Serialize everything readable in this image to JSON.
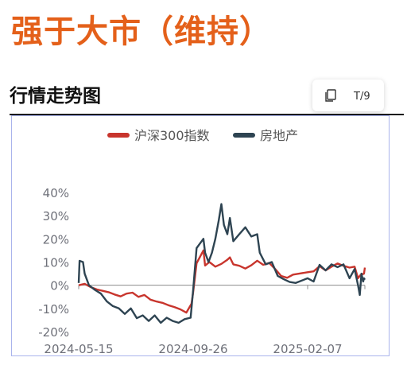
{
  "headline": "强于大市（维持）",
  "section_title": "行情走势图",
  "toolbar": {
    "copy_icon": "copy-icon",
    "text_icon": "font-size-icon",
    "text_glyph": "T/9"
  },
  "colors": {
    "headline": "#e4601a",
    "series_index": "#c8352d",
    "series_realestate": "#2e4452",
    "axis_text": "#6e7079",
    "frame": "#aab4ec"
  },
  "chart_data": {
    "type": "line",
    "title": "",
    "xlabel": "",
    "ylabel": "",
    "ylim": [
      -20,
      40
    ],
    "yticks": [
      -20,
      -10,
      0,
      10,
      20,
      30,
      40
    ],
    "ytick_labels": [
      "-20%",
      "-10%",
      "0%",
      "10%",
      "20%",
      "30%",
      "40%"
    ],
    "xlim": [
      "2024-05-15",
      "2025-04-15"
    ],
    "xticks": [
      "2024-05-15",
      "2024-09-26",
      "2025-02-07"
    ],
    "legend_position": "top-center",
    "grid": false,
    "series": [
      {
        "name": "沪深300指数",
        "color": "#c8352d",
        "points": [
          [
            "2024-05-15",
            0
          ],
          [
            "2024-05-22",
            0.6
          ],
          [
            "2024-05-29",
            -0.8
          ],
          [
            "2024-06-05",
            -1.8
          ],
          [
            "2024-06-12",
            -2.4
          ],
          [
            "2024-06-19",
            -3.0
          ],
          [
            "2024-06-26",
            -4.0
          ],
          [
            "2024-07-03",
            -4.8
          ],
          [
            "2024-07-10",
            -3.6
          ],
          [
            "2024-07-17",
            -3.2
          ],
          [
            "2024-07-24",
            -5.0
          ],
          [
            "2024-07-31",
            -4.2
          ],
          [
            "2024-08-07",
            -6.2
          ],
          [
            "2024-08-14",
            -7.0
          ],
          [
            "2024-08-21",
            -7.6
          ],
          [
            "2024-08-28",
            -8.6
          ],
          [
            "2024-09-04",
            -9.4
          ],
          [
            "2024-09-11",
            -10.4
          ],
          [
            "2024-09-18",
            -11.8
          ],
          [
            "2024-09-24",
            -8.0
          ],
          [
            "2024-09-26",
            -3.0
          ],
          [
            "2024-09-30",
            9.5
          ],
          [
            "2024-10-08",
            15.0
          ],
          [
            "2024-10-10",
            8.5
          ],
          [
            "2024-10-15",
            10.0
          ],
          [
            "2024-10-22",
            8.0
          ],
          [
            "2024-10-29",
            9.2
          ],
          [
            "2024-11-05",
            11.0
          ],
          [
            "2024-11-08",
            12.0
          ],
          [
            "2024-11-12",
            9.0
          ],
          [
            "2024-11-19",
            8.4
          ],
          [
            "2024-11-26",
            7.2
          ],
          [
            "2024-12-03",
            8.6
          ],
          [
            "2024-12-10",
            10.6
          ],
          [
            "2024-12-17",
            8.8
          ],
          [
            "2024-12-24",
            9.6
          ],
          [
            "2024-12-31",
            7.0
          ],
          [
            "2025-01-07",
            4.0
          ],
          [
            "2025-01-14",
            3.2
          ],
          [
            "2025-01-21",
            4.6
          ],
          [
            "2025-01-28",
            5.0
          ],
          [
            "2025-02-07",
            5.6
          ],
          [
            "2025-02-14",
            6.0
          ],
          [
            "2025-02-21",
            8.2
          ],
          [
            "2025-02-28",
            6.4
          ],
          [
            "2025-03-07",
            8.0
          ],
          [
            "2025-03-14",
            9.4
          ],
          [
            "2025-03-21",
            8.4
          ],
          [
            "2025-03-28",
            7.6
          ],
          [
            "2025-04-03",
            8.0
          ],
          [
            "2025-04-07",
            3.0
          ],
          [
            "2025-04-10",
            4.4
          ],
          [
            "2025-04-14",
            5.0
          ],
          [
            "2025-04-15",
            7.6
          ]
        ]
      },
      {
        "name": "房地产",
        "color": "#2e4452",
        "points": [
          [
            "2024-05-15",
            1.0
          ],
          [
            "2024-05-16",
            10.5
          ],
          [
            "2024-05-20",
            10.0
          ],
          [
            "2024-05-22",
            5.0
          ],
          [
            "2024-05-27",
            0.0
          ],
          [
            "2024-06-03",
            -2.0
          ],
          [
            "2024-06-10",
            -3.6
          ],
          [
            "2024-06-17",
            -7.0
          ],
          [
            "2024-06-24",
            -9.0
          ],
          [
            "2024-07-01",
            -10.0
          ],
          [
            "2024-07-08",
            -12.4
          ],
          [
            "2024-07-15",
            -10.0
          ],
          [
            "2024-07-22",
            -14.2
          ],
          [
            "2024-07-29",
            -13.0
          ],
          [
            "2024-08-05",
            -15.4
          ],
          [
            "2024-08-12",
            -13.0
          ],
          [
            "2024-08-19",
            -16.2
          ],
          [
            "2024-08-26",
            -14.0
          ],
          [
            "2024-09-02",
            -15.4
          ],
          [
            "2024-09-09",
            -16.2
          ],
          [
            "2024-09-16",
            -14.6
          ],
          [
            "2024-09-23",
            -14.0
          ],
          [
            "2024-09-26",
            -2.0
          ],
          [
            "2024-09-30",
            16.0
          ],
          [
            "2024-10-08",
            20.0
          ],
          [
            "2024-10-10",
            14.0
          ],
          [
            "2024-10-14",
            10.0
          ],
          [
            "2024-10-18",
            14.0
          ],
          [
            "2024-10-22",
            20.0
          ],
          [
            "2024-10-26",
            28.0
          ],
          [
            "2024-10-29",
            35.0
          ],
          [
            "2024-11-01",
            26.0
          ],
          [
            "2024-11-05",
            22.0
          ],
          [
            "2024-11-08",
            29.0
          ],
          [
            "2024-11-12",
            19.0
          ],
          [
            "2024-11-19",
            22.0
          ],
          [
            "2024-11-26",
            25.0
          ],
          [
            "2024-12-03",
            21.0
          ],
          [
            "2024-12-10",
            22.0
          ],
          [
            "2024-12-13",
            14.0
          ],
          [
            "2024-12-20",
            9.0
          ],
          [
            "2024-12-27",
            10.0
          ],
          [
            "2025-01-03",
            4.0
          ],
          [
            "2025-01-10",
            2.6
          ],
          [
            "2025-01-17",
            1.4
          ],
          [
            "2025-01-24",
            1.0
          ],
          [
            "2025-02-07",
            3.0
          ],
          [
            "2025-02-14",
            1.6
          ],
          [
            "2025-02-21",
            8.8
          ],
          [
            "2025-02-28",
            6.4
          ],
          [
            "2025-03-07",
            9.0
          ],
          [
            "2025-03-14",
            7.8
          ],
          [
            "2025-03-21",
            9.0
          ],
          [
            "2025-03-28",
            3.0
          ],
          [
            "2025-04-03",
            7.0
          ],
          [
            "2025-04-07",
            0.0
          ],
          [
            "2025-04-09",
            -4.2
          ],
          [
            "2025-04-11",
            5.0
          ],
          [
            "2025-04-13",
            1.6
          ],
          [
            "2025-04-14",
            3.0
          ],
          [
            "2025-04-15",
            2.4
          ]
        ]
      }
    ]
  }
}
